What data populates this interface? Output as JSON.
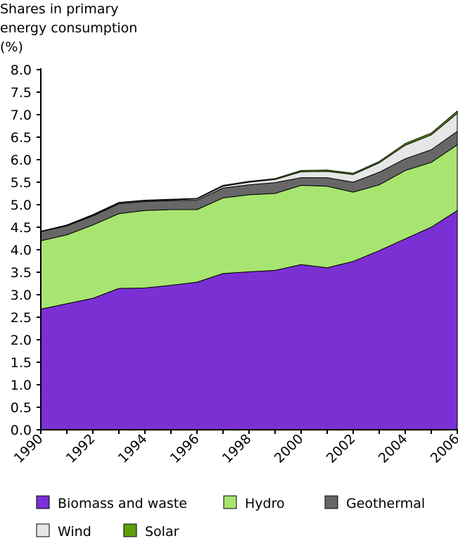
{
  "chart_data": {
    "type": "area",
    "stacked": true,
    "title": "",
    "ylabel": "Shares in primary energy consumption (%)",
    "ylabel_lines": [
      "Shares in primary",
      "energy consumption",
      "(%)"
    ],
    "xlabel": "",
    "ylim": [
      0,
      8
    ],
    "yticks": [
      "0.0",
      "0.5",
      "1.0",
      "1.5",
      "2.0",
      "2.5",
      "3.0",
      "3.5",
      "4.0",
      "4.5",
      "5.0",
      "5.5",
      "6.0",
      "6.5",
      "7.0",
      "7.5",
      "8.0"
    ],
    "xticks": [
      "1990",
      "1992",
      "1994",
      "1996",
      "1998",
      "2000",
      "2002",
      "2004",
      "2006"
    ],
    "x": [
      1990,
      1991,
      1992,
      1993,
      1994,
      1995,
      1996,
      1997,
      1998,
      1999,
      2000,
      2001,
      2002,
      2003,
      2004,
      2005,
      2006
    ],
    "grid": false,
    "legend_position": "bottom",
    "series": [
      {
        "name": "Biomass and waste",
        "color": "#7B30D4",
        "values": [
          2.68,
          2.8,
          2.92,
          3.14,
          3.15,
          3.21,
          3.28,
          3.47,
          3.51,
          3.54,
          3.67,
          3.6,
          3.74,
          3.98,
          4.24,
          4.5,
          4.87
        ]
      },
      {
        "name": "Hydro",
        "color": "#A8E570",
        "values": [
          1.52,
          1.53,
          1.63,
          1.66,
          1.72,
          1.68,
          1.61,
          1.68,
          1.71,
          1.71,
          1.76,
          1.81,
          1.54,
          1.46,
          1.52,
          1.44,
          1.46
        ]
      },
      {
        "name": "Geothermal",
        "color": "#676767",
        "values": [
          0.2,
          0.2,
          0.2,
          0.22,
          0.2,
          0.2,
          0.21,
          0.22,
          0.22,
          0.24,
          0.17,
          0.19,
          0.22,
          0.28,
          0.26,
          0.28,
          0.3
        ]
      },
      {
        "name": "Wind",
        "color": "#E6E6E6",
        "values": [
          0.01,
          0.01,
          0.02,
          0.02,
          0.02,
          0.02,
          0.03,
          0.04,
          0.06,
          0.07,
          0.13,
          0.14,
          0.17,
          0.21,
          0.3,
          0.33,
          0.4
        ]
      },
      {
        "name": "Solar",
        "color": "#5FA00F",
        "values": [
          0.0,
          0.01,
          0.01,
          0.01,
          0.01,
          0.01,
          0.01,
          0.02,
          0.02,
          0.02,
          0.03,
          0.03,
          0.03,
          0.03,
          0.04,
          0.04,
          0.05
        ]
      }
    ]
  }
}
